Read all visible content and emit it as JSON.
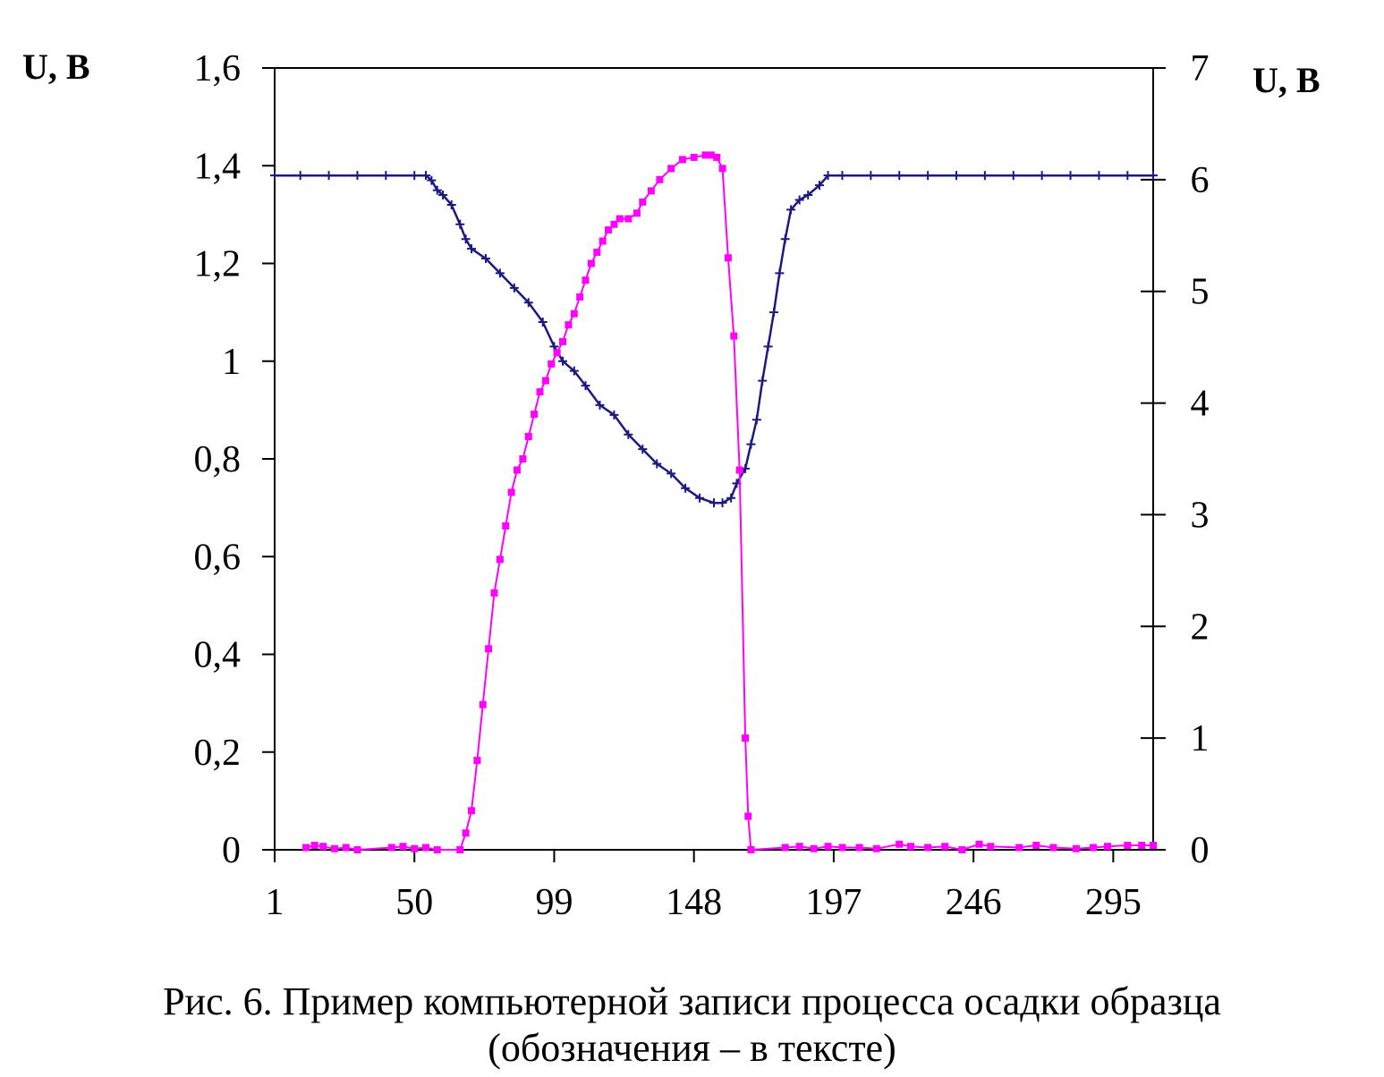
{
  "chart_data": {
    "type": "line",
    "ylabel_left": "U, В",
    "ylabel_right": "U, В",
    "x_ticks": [
      "1",
      "50",
      "99",
      "148",
      "197",
      "246",
      "295"
    ],
    "xlim": [
      1,
      309
    ],
    "y_left_ticks": [
      "0",
      "0,2",
      "0,4",
      "0,6",
      "0,8",
      "1",
      "1,2",
      "1,4",
      "1,6"
    ],
    "ylim_left": [
      0,
      1.6
    ],
    "y_right_ticks": [
      "0",
      "1",
      "2",
      "3",
      "4",
      "5",
      "6",
      "7"
    ],
    "ylim_right": [
      0,
      7
    ],
    "grid": false,
    "series": [
      {
        "axis": "left",
        "color": "#1a1a80",
        "marker": "plus",
        "points": [
          [
            1,
            1.38
          ],
          [
            10,
            1.38
          ],
          [
            20,
            1.38
          ],
          [
            30,
            1.38
          ],
          [
            40,
            1.38
          ],
          [
            50,
            1.38
          ],
          [
            54,
            1.38
          ],
          [
            56,
            1.37
          ],
          [
            58,
            1.35
          ],
          [
            60,
            1.34
          ],
          [
            63,
            1.32
          ],
          [
            66,
            1.28
          ],
          [
            68,
            1.25
          ],
          [
            70,
            1.23
          ],
          [
            75,
            1.21
          ],
          [
            80,
            1.18
          ],
          [
            85,
            1.15
          ],
          [
            90,
            1.12
          ],
          [
            95,
            1.08
          ],
          [
            99,
            1.03
          ],
          [
            102,
            1.0
          ],
          [
            106,
            0.98
          ],
          [
            110,
            0.95
          ],
          [
            115,
            0.91
          ],
          [
            120,
            0.89
          ],
          [
            125,
            0.85
          ],
          [
            130,
            0.82
          ],
          [
            135,
            0.79
          ],
          [
            140,
            0.77
          ],
          [
            145,
            0.74
          ],
          [
            150,
            0.72
          ],
          [
            155,
            0.71
          ],
          [
            158,
            0.71
          ],
          [
            161,
            0.72
          ],
          [
            163,
            0.75
          ],
          [
            166,
            0.78
          ],
          [
            168,
            0.83
          ],
          [
            170,
            0.88
          ],
          [
            172,
            0.96
          ],
          [
            174,
            1.03
          ],
          [
            176,
            1.1
          ],
          [
            178,
            1.18
          ],
          [
            180,
            1.25
          ],
          [
            182,
            1.31
          ],
          [
            185,
            1.33
          ],
          [
            188,
            1.34
          ],
          [
            192,
            1.36
          ],
          [
            195,
            1.38
          ],
          [
            200,
            1.38
          ],
          [
            210,
            1.38
          ],
          [
            220,
            1.38
          ],
          [
            230,
            1.38
          ],
          [
            240,
            1.38
          ],
          [
            250,
            1.38
          ],
          [
            260,
            1.38
          ],
          [
            270,
            1.38
          ],
          [
            280,
            1.38
          ],
          [
            290,
            1.38
          ],
          [
            300,
            1.38
          ],
          [
            309,
            1.38
          ]
        ]
      },
      {
        "axis": "right",
        "color": "#ff00ff",
        "marker": "square",
        "points": [
          [
            12,
            0.02
          ],
          [
            15,
            0.04
          ],
          [
            18,
            0.03
          ],
          [
            22,
            0.01
          ],
          [
            26,
            0.02
          ],
          [
            30,
            0.0
          ],
          [
            42,
            0.02
          ],
          [
            46,
            0.03
          ],
          [
            50,
            0.01
          ],
          [
            54,
            0.02
          ],
          [
            58,
            0.0
          ],
          [
            66,
            0.0
          ],
          [
            68,
            0.15
          ],
          [
            70,
            0.35
          ],
          [
            72,
            0.8
          ],
          [
            74,
            1.3
          ],
          [
            76,
            1.8
          ],
          [
            78,
            2.3
          ],
          [
            80,
            2.6
          ],
          [
            82,
            2.9
          ],
          [
            84,
            3.2
          ],
          [
            86,
            3.4
          ],
          [
            88,
            3.5
          ],
          [
            90,
            3.7
          ],
          [
            92,
            3.9
          ],
          [
            94,
            4.1
          ],
          [
            96,
            4.2
          ],
          [
            98,
            4.35
          ],
          [
            100,
            4.45
          ],
          [
            102,
            4.55
          ],
          [
            104,
            4.7
          ],
          [
            106,
            4.8
          ],
          [
            108,
            4.95
          ],
          [
            110,
            5.1
          ],
          [
            112,
            5.25
          ],
          [
            114,
            5.35
          ],
          [
            116,
            5.45
          ],
          [
            118,
            5.55
          ],
          [
            120,
            5.6
          ],
          [
            122,
            5.65
          ],
          [
            125,
            5.65
          ],
          [
            128,
            5.7
          ],
          [
            130,
            5.8
          ],
          [
            133,
            5.9
          ],
          [
            136,
            6.0
          ],
          [
            140,
            6.1
          ],
          [
            144,
            6.18
          ],
          [
            148,
            6.2
          ],
          [
            152,
            6.22
          ],
          [
            154,
            6.22
          ],
          [
            156,
            6.2
          ],
          [
            158,
            6.1
          ],
          [
            160,
            5.3
          ],
          [
            162,
            4.6
          ],
          [
            164,
            3.4
          ],
          [
            166,
            1.0
          ],
          [
            167,
            0.3
          ],
          [
            168,
            0.0
          ],
          [
            180,
            0.02
          ],
          [
            185,
            0.03
          ],
          [
            190,
            0.01
          ],
          [
            195,
            0.03
          ],
          [
            200,
            0.02
          ],
          [
            206,
            0.02
          ],
          [
            212,
            0.01
          ],
          [
            220,
            0.05
          ],
          [
            224,
            0.03
          ],
          [
            230,
            0.02
          ],
          [
            236,
            0.03
          ],
          [
            242,
            0.0
          ],
          [
            248,
            0.05
          ],
          [
            252,
            0.03
          ],
          [
            262,
            0.02
          ],
          [
            268,
            0.04
          ],
          [
            274,
            0.02
          ],
          [
            282,
            0.01
          ],
          [
            288,
            0.02
          ],
          [
            293,
            0.03
          ],
          [
            300,
            0.04
          ],
          [
            305,
            0.04
          ],
          [
            309,
            0.04
          ]
        ]
      }
    ]
  },
  "caption": {
    "line1": "Рис. 6. Пример компьютерной записи процесса осадки образца",
    "line2": "(обозначения – в тексте)"
  }
}
